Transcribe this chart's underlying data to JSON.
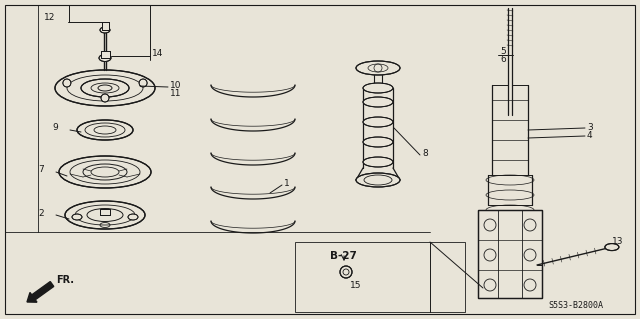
{
  "bg_color": "#e8e4d8",
  "line_color": "#1a1a1a",
  "diagram_code": "S5S3-B2800A",
  "figsize": [
    6.4,
    3.19
  ],
  "dpi": 100
}
